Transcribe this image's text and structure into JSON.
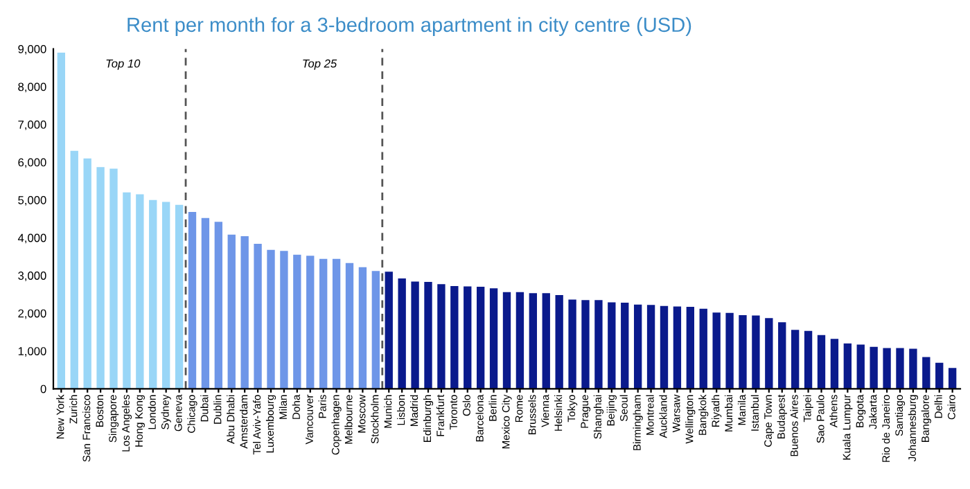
{
  "chart_data": {
    "type": "bar",
    "title": "Rent per month for a 3-bedroom apartment in city centre (USD)",
    "categories": [
      "New York",
      "Zurich",
      "San Francisco",
      "Boston",
      "Singapore",
      "Los Angeles",
      "Hong Kong",
      "London",
      "Sydney",
      "Geneva",
      "Chicago",
      "Dubai",
      "Dublin",
      "Abu Dhabi",
      "Amsterdam",
      "Tel Aviv-Yafo",
      "Luxembourg",
      "Milan",
      "Doha",
      "Vancouver",
      "Paris",
      "Copenhagen",
      "Melbourne",
      "Moscow",
      "Stockholm",
      "Munich",
      "Lisbon",
      "Madrid",
      "Edinburgh",
      "Frankfurt",
      "Toronto",
      "Oslo",
      "Barcelona",
      "Berlin",
      "Mexico City",
      "Rome",
      "Brussels",
      "Vienna",
      "Helsinki",
      "Tokyo",
      "Prague",
      "Shanghai",
      "Beijing",
      "Seoul",
      "Birmingham",
      "Montreal",
      "Auckland",
      "Warsaw",
      "Wellington",
      "Bangkok",
      "Riyadh",
      "Mumbai",
      "Manila",
      "Istanbul",
      "Cape Town",
      "Budapest",
      "Buenos Aires",
      "Taipei",
      "Sao Paulo",
      "Athens",
      "Kuala Lumpur",
      "Bogota",
      "Jakarta",
      "Rio de Janeiro",
      "Santiago",
      "Johannesburg",
      "Bangalore",
      "Delhi",
      "Cairo"
    ],
    "values": [
      8900,
      6300,
      6100,
      5870,
      5830,
      5200,
      5150,
      5000,
      4950,
      4870,
      4680,
      4520,
      4420,
      4080,
      4040,
      3840,
      3680,
      3650,
      3550,
      3520,
      3440,
      3440,
      3330,
      3220,
      3120,
      3100,
      2920,
      2840,
      2830,
      2770,
      2720,
      2710,
      2700,
      2660,
      2560,
      2560,
      2530,
      2530,
      2480,
      2360,
      2350,
      2350,
      2290,
      2280,
      2230,
      2220,
      2190,
      2180,
      2170,
      2120,
      2020,
      2010,
      1950,
      1940,
      1870,
      1760,
      1560,
      1530,
      1420,
      1320,
      1200,
      1170,
      1110,
      1080,
      1080,
      1060,
      840,
      690,
      550
    ],
    "colors": [
      "#99d6f7",
      "#99d6f7",
      "#99d6f7",
      "#99d6f7",
      "#99d6f7",
      "#99d6f7",
      "#99d6f7",
      "#99d6f7",
      "#99d6f7",
      "#99d6f7",
      "#6e96e8",
      "#6e96e8",
      "#6e96e8",
      "#6e96e8",
      "#6e96e8",
      "#6e96e8",
      "#6e96e8",
      "#6e96e8",
      "#6e96e8",
      "#6e96e8",
      "#6e96e8",
      "#6e96e8",
      "#6e96e8",
      "#6e96e8",
      "#6e96e8",
      "#0a1a8c",
      "#0a1a8c",
      "#0a1a8c",
      "#0a1a8c",
      "#0a1a8c",
      "#0a1a8c",
      "#0a1a8c",
      "#0a1a8c",
      "#0a1a8c",
      "#0a1a8c",
      "#0a1a8c",
      "#0a1a8c",
      "#0a1a8c",
      "#0a1a8c",
      "#0a1a8c",
      "#0a1a8c",
      "#0a1a8c",
      "#0a1a8c",
      "#0a1a8c",
      "#0a1a8c",
      "#0a1a8c",
      "#0a1a8c",
      "#0a1a8c",
      "#0a1a8c",
      "#0a1a8c",
      "#0a1a8c",
      "#0a1a8c",
      "#0a1a8c",
      "#0a1a8c",
      "#0a1a8c",
      "#0a1a8c",
      "#0a1a8c",
      "#0a1a8c",
      "#0a1a8c",
      "#0a1a8c",
      "#0a1a8c",
      "#0a1a8c",
      "#0a1a8c",
      "#0a1a8c",
      "#0a1a8c",
      "#0a1a8c",
      "#0a1a8c",
      "#0a1a8c",
      "#0a1a8c"
    ],
    "ylim": [
      0,
      9000
    ],
    "yticks": [
      {
        "value": 0,
        "label": "0"
      },
      {
        "value": 1000,
        "label": "1,000"
      },
      {
        "value": 2000,
        "label": "2,000"
      },
      {
        "value": 3000,
        "label": "3,000"
      },
      {
        "value": 4000,
        "label": "4,000"
      },
      {
        "value": 5000,
        "label": "5,000"
      },
      {
        "value": 6000,
        "label": "6,000"
      },
      {
        "value": 7000,
        "label": "7,000"
      },
      {
        "value": 8000,
        "label": "8,000"
      },
      {
        "value": 9000,
        "label": "9,000"
      }
    ],
    "annotations": [
      "Top 10",
      "Top 25"
    ],
    "grid": false,
    "legend": false
  }
}
